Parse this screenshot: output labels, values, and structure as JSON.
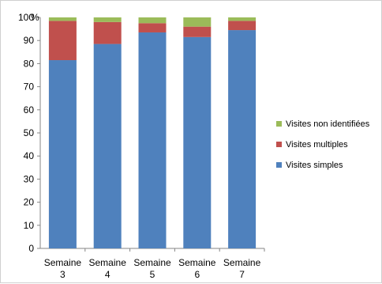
{
  "chart_data": {
    "type": "bar",
    "stacked": true,
    "categories": [
      "Semaine 3",
      "Semaine 4",
      "Semaine 5",
      "Semaine 6",
      "Semaine 7"
    ],
    "category_lines": [
      [
        "Semaine",
        "3"
      ],
      [
        "Semaine",
        "4"
      ],
      [
        "Semaine",
        "5"
      ],
      [
        "Semaine",
        "6"
      ],
      [
        "Semaine",
        "7"
      ]
    ],
    "series": [
      {
        "name": "Visites simples",
        "color": "#4F81BD",
        "values": [
          81.5,
          88.5,
          93.5,
          91.5,
          94.5
        ]
      },
      {
        "name": "Visites multiples",
        "color": "#C0504D",
        "values": [
          17,
          9.5,
          4,
          4.5,
          4
        ]
      },
      {
        "name": "Visites non identifiées",
        "color": "#9BBB59",
        "values": [
          1.5,
          2,
          2.5,
          4,
          1.5
        ]
      }
    ],
    "y_unit": "%",
    "ylim": [
      0,
      100
    ],
    "y_ticks": [
      "0",
      "10",
      "20",
      "30",
      "40",
      "50",
      "60",
      "70",
      "80",
      "90",
      "100"
    ],
    "grid": false,
    "legend_position": "right",
    "legend_order": [
      "Visites non identifiées",
      "Visites multiples",
      "Visites simples"
    ]
  }
}
